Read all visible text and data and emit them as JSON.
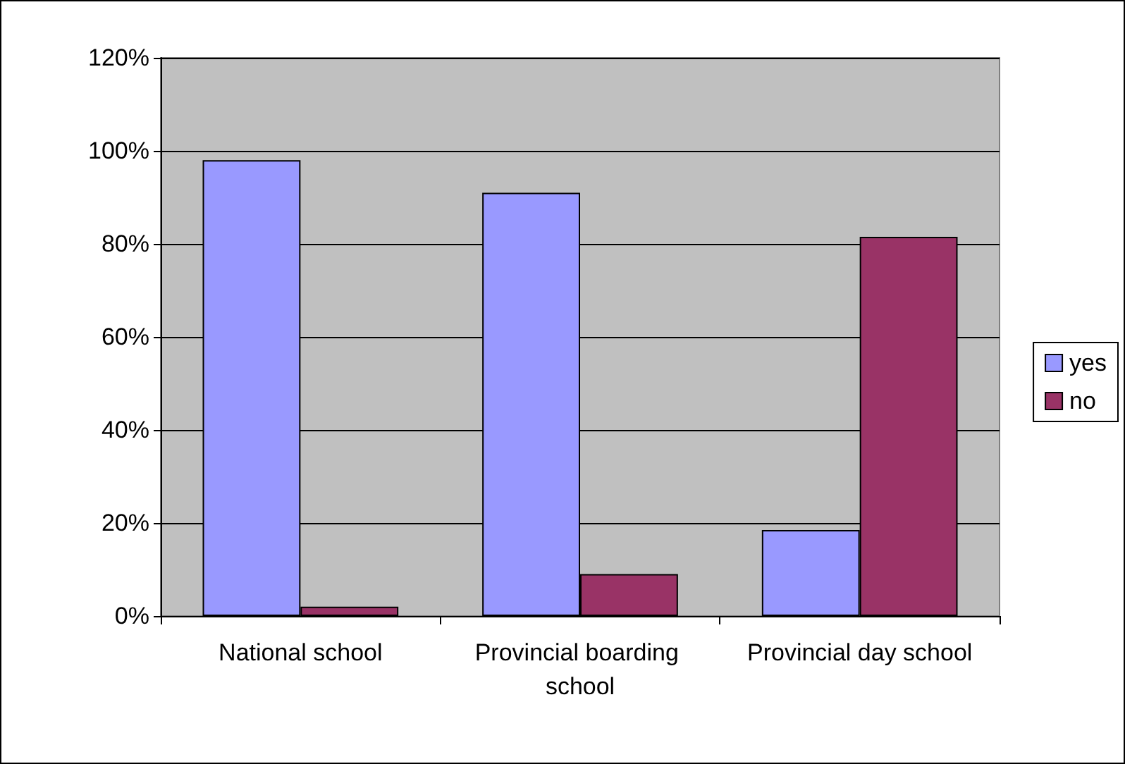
{
  "chart_data": {
    "type": "bar",
    "categories": [
      "National school",
      "Provincial boarding school",
      "Provincial day school"
    ],
    "series": [
      {
        "name": "yes",
        "color": "#9999ff",
        "values": [
          98,
          91,
          18.5
        ]
      },
      {
        "name": "no",
        "color": "#993366",
        "values": [
          2,
          9,
          81.5
        ]
      }
    ],
    "ylim": [
      0,
      120
    ],
    "yticks": [
      {
        "value": 0,
        "label": "0%"
      },
      {
        "value": 20,
        "label": "20%"
      },
      {
        "value": 40,
        "label": "40%"
      },
      {
        "value": 60,
        "label": "60%"
      },
      {
        "value": 80,
        "label": "80%"
      },
      {
        "value": 100,
        "label": "100%"
      },
      {
        "value": 120,
        "label": "120%"
      }
    ],
    "grid": "y",
    "legend": "right"
  }
}
